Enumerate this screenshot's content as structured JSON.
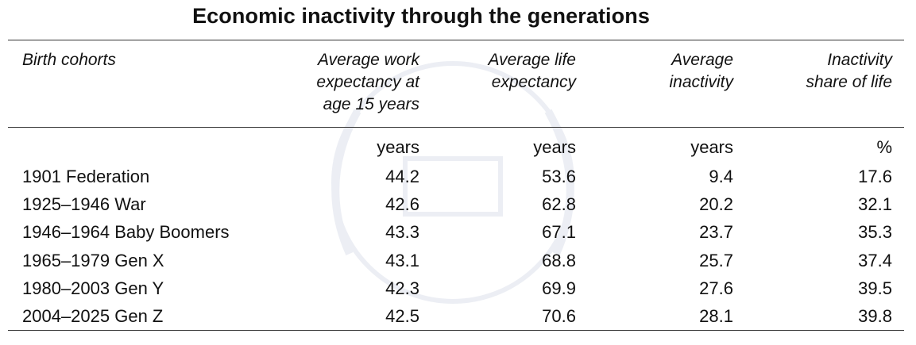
{
  "chart_data": {
    "type": "table",
    "title": "Economic inactivity through the generations",
    "columns": [
      "Birth cohorts",
      "Average work expectancy at age 15 years",
      "Average life expectancy",
      "Average inactivity",
      "Inactivity share of life"
    ],
    "header_lines": [
      [
        "Birth cohorts"
      ],
      [
        "Average work",
        "expectancy at",
        "age 15 years"
      ],
      [
        "Average life",
        "expectancy"
      ],
      [
        "Average",
        "inactivity"
      ],
      [
        "Inactivity",
        "share of life"
      ]
    ],
    "units": [
      "",
      "years",
      "years",
      "years",
      "%"
    ],
    "rows": [
      [
        "1901 Federation",
        "44.2",
        "53.6",
        "9.4",
        "17.6"
      ],
      [
        "1925–1946 War",
        "42.6",
        "62.8",
        "20.2",
        "32.1"
      ],
      [
        "1946–1964 Baby Boomers",
        "43.3",
        "67.1",
        "23.7",
        "35.3"
      ],
      [
        "1965–1979 Gen X",
        "43.1",
        "68.8",
        "25.7",
        "37.4"
      ],
      [
        "1980–2003 Gen Y",
        "42.3",
        "69.9",
        "27.6",
        "39.5"
      ],
      [
        "2004–2025 Gen Z",
        "42.5",
        "70.6",
        "28.1",
        "39.8"
      ]
    ]
  }
}
